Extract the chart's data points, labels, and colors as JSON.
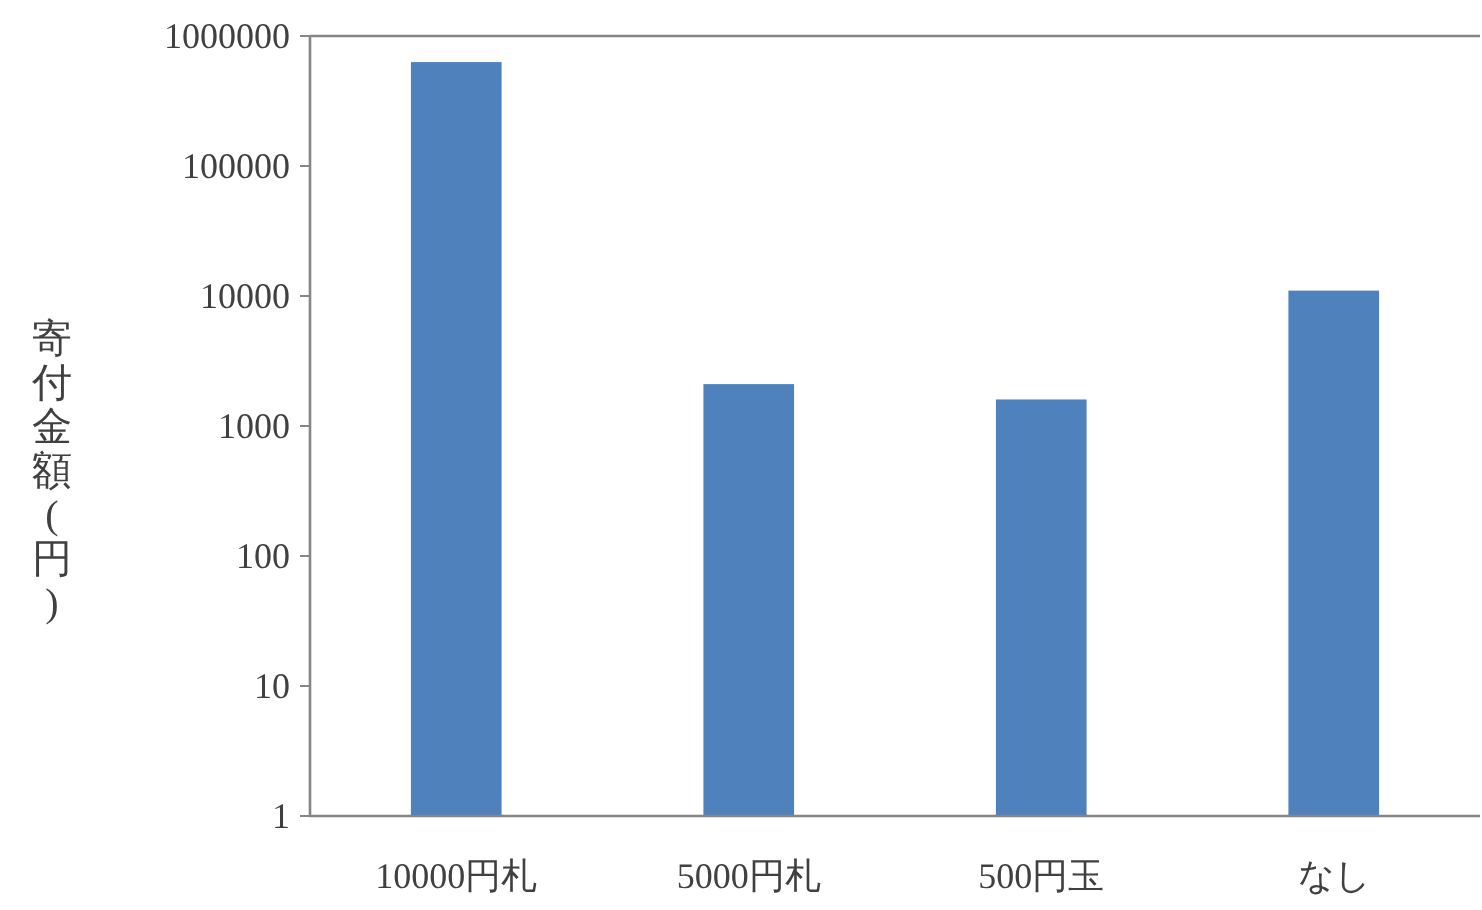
{
  "chart_data": {
    "type": "bar",
    "categories": [
      "10000円札",
      "5000円札",
      "500円玉",
      "なし"
    ],
    "values": [
      630000,
      2100,
      1600,
      11000
    ],
    "color": "#4f81bd",
    "ylabel": "寄付金額(円)",
    "log": true,
    "ylim": [
      1,
      1000000
    ],
    "yticks": [
      1,
      10,
      100,
      1000,
      10000,
      100000,
      1000000
    ],
    "grid": false
  }
}
